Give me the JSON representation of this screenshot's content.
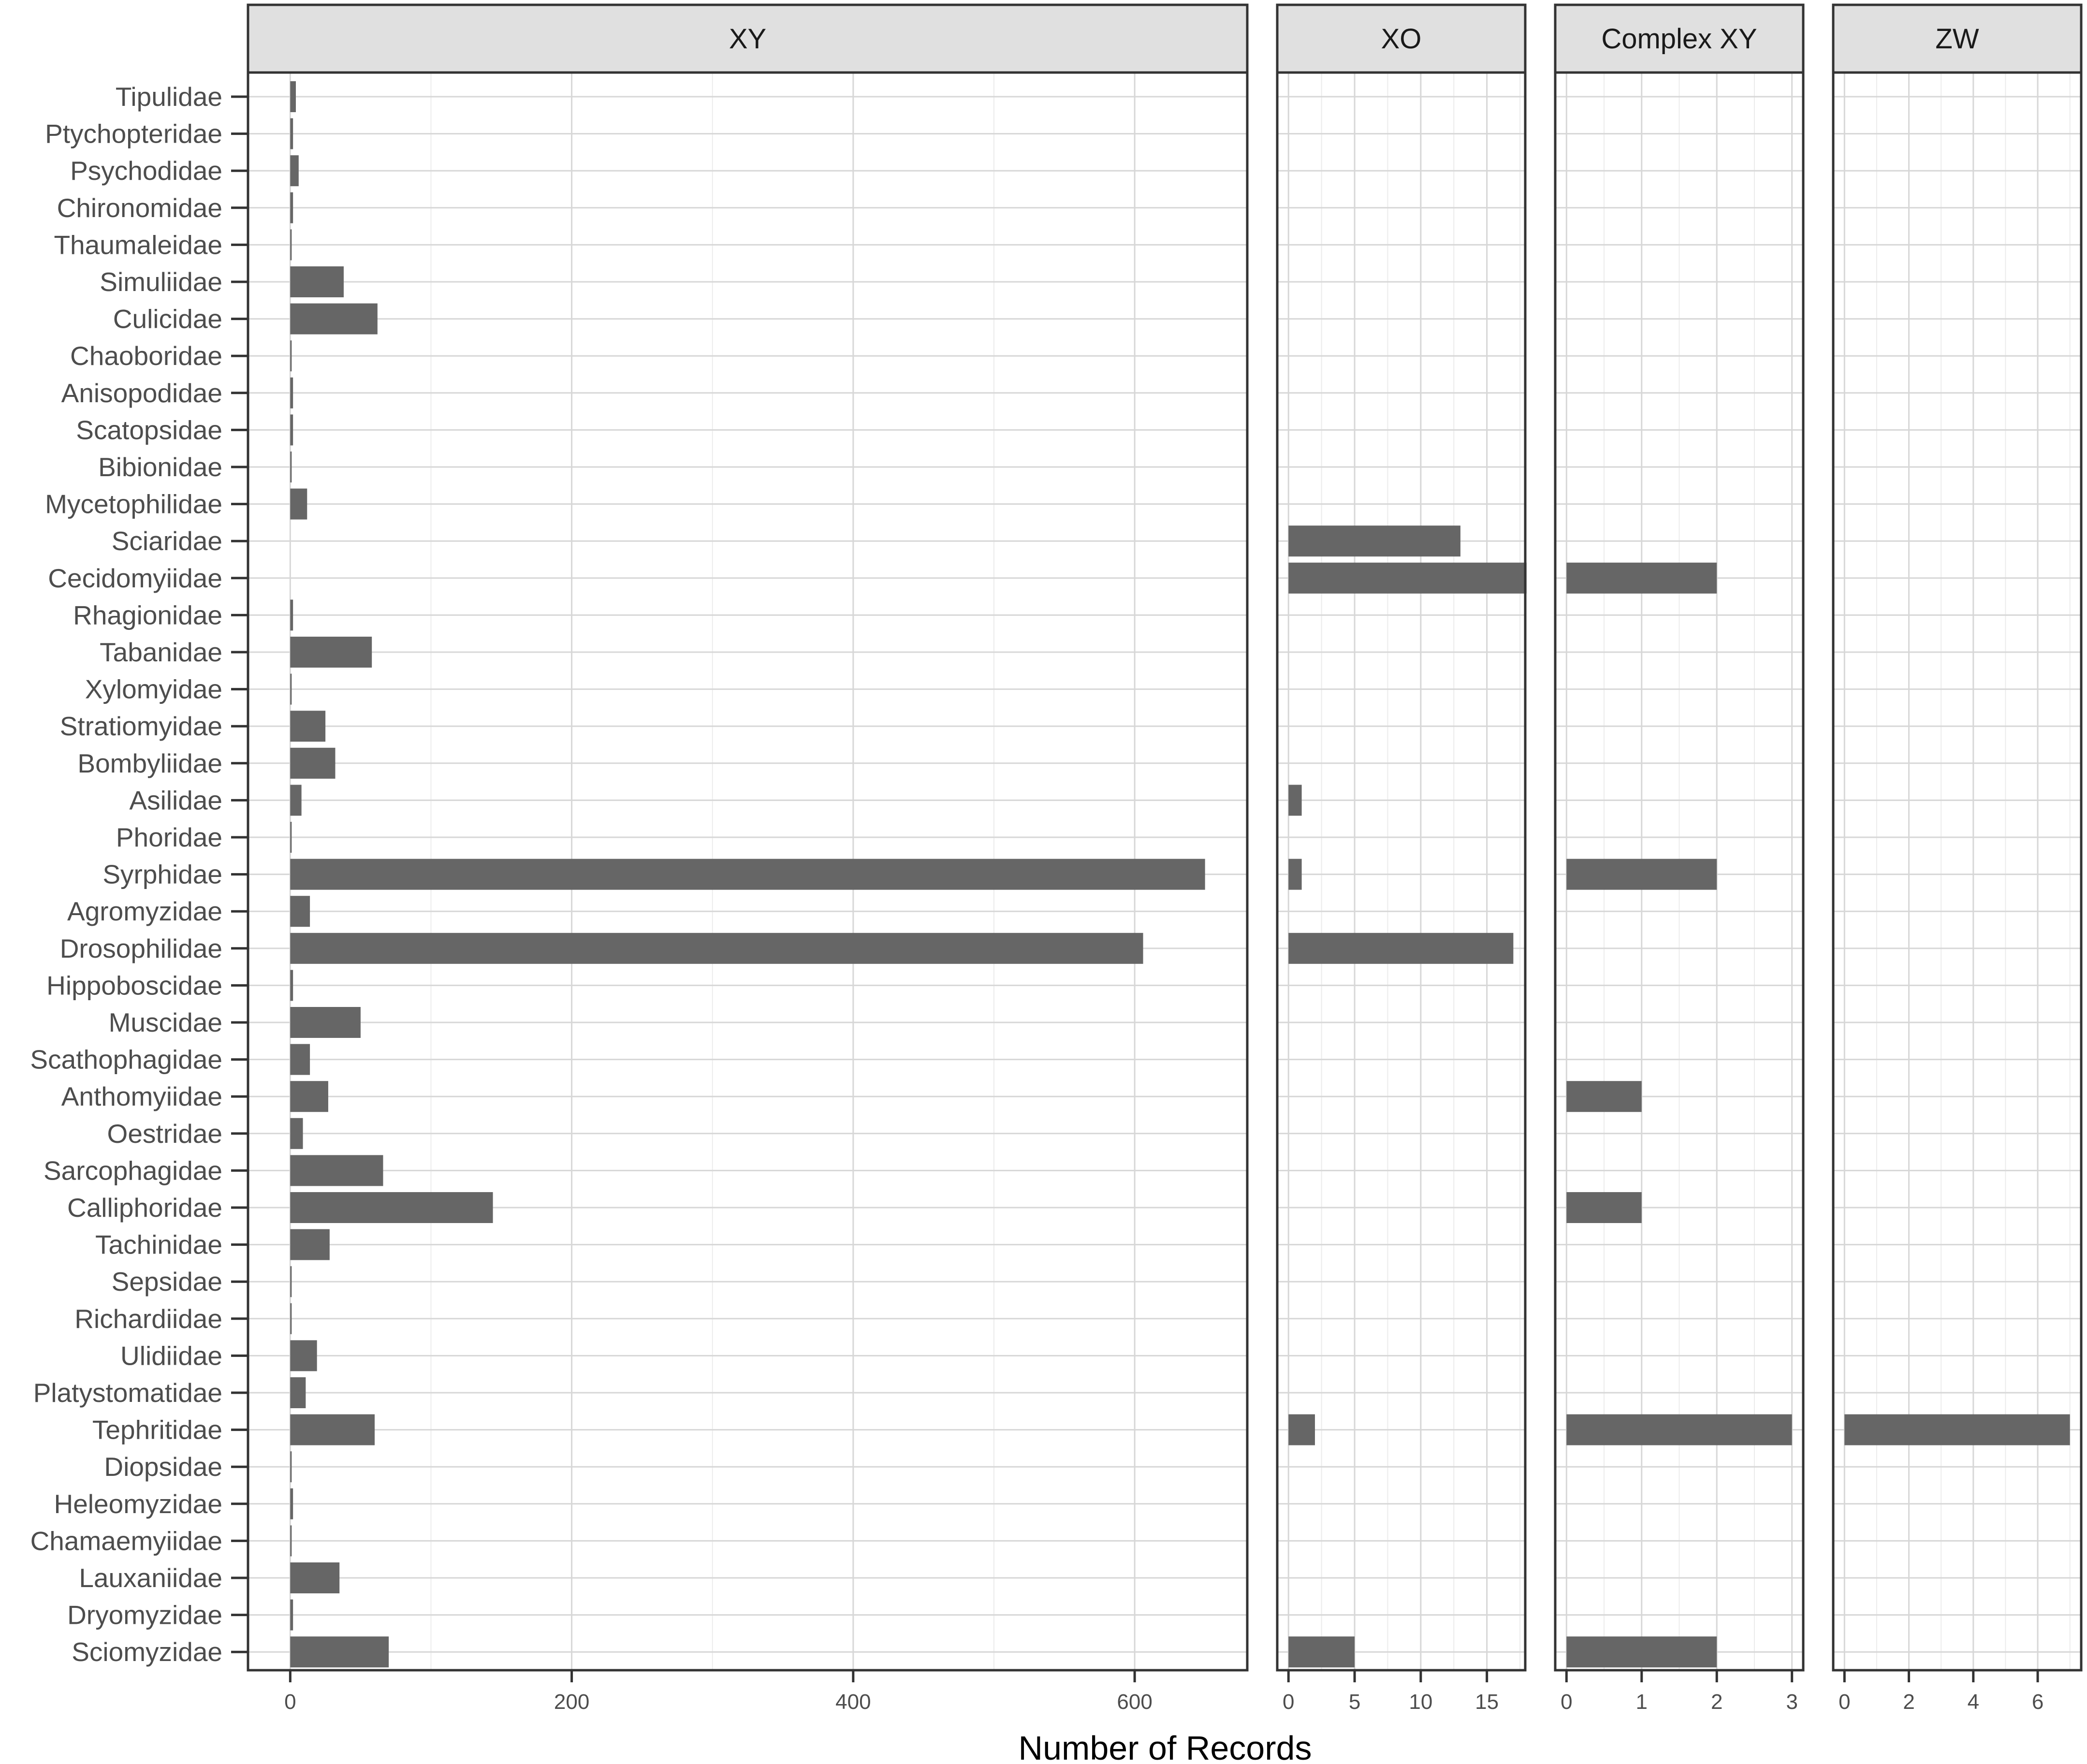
{
  "chart_data": {
    "type": "bar",
    "orientation": "horizontal",
    "facets": [
      "XY",
      "XO",
      "Complex XY",
      "ZW"
    ],
    "xlabel": "Number of Records",
    "ylabel": "",
    "grid": true,
    "categories": [
      "Tipulidae",
      "Ptychopteridae",
      "Psychodidae",
      "Chironomidae",
      "Thaumaleidae",
      "Simuliidae",
      "Culicidae",
      "Chaoboridae",
      "Anisopodidae",
      "Scatopsidae",
      "Bibionidae",
      "Mycetophilidae",
      "Sciaridae",
      "Cecidomyiidae",
      "Rhagionidae",
      "Tabanidae",
      "Xylomyidae",
      "Stratiomyidae",
      "Bombyliidae",
      "Asilidae",
      "Phoridae",
      "Syrphidae",
      "Agromyzidae",
      "Drosophilidae",
      "Hippoboscidae",
      "Muscidae",
      "Scathophagidae",
      "Anthomyiidae",
      "Oestridae",
      "Sarcophagidae",
      "Calliphoridae",
      "Tachinidae",
      "Sepsidae",
      "Richardiidae",
      "Ulidiidae",
      "Platystomatidae",
      "Tephritidae",
      "Diopsidae",
      "Heleomyzidae",
      "Chamaemyiidae",
      "Lauxaniidae",
      "Dryomyzidae",
      "Sciomyzidae"
    ],
    "series": [
      {
        "name": "XY",
        "xlim": [
          -30,
          680
        ],
        "ticks": [
          "0",
          "200",
          "400",
          "600"
        ],
        "tick_values": [
          0,
          200,
          400,
          600
        ],
        "values": [
          4,
          2,
          6,
          2,
          1,
          38,
          62,
          1,
          2,
          2,
          1,
          12,
          null,
          null,
          2,
          58,
          1,
          25,
          32,
          8,
          1,
          650,
          14,
          606,
          2,
          50,
          14,
          27,
          9,
          66,
          144,
          28,
          1,
          1,
          19,
          11,
          60,
          1,
          2,
          1,
          35,
          2,
          70
        ]
      },
      {
        "name": "XO",
        "xlim": [
          -0.85,
          17.9
        ],
        "ticks": [
          "0",
          "5",
          "10",
          "15"
        ],
        "tick_values": [
          0,
          5,
          10,
          15
        ],
        "values": [
          null,
          null,
          null,
          null,
          null,
          null,
          null,
          null,
          null,
          null,
          null,
          null,
          13,
          18,
          null,
          null,
          null,
          null,
          null,
          1,
          null,
          1,
          null,
          17,
          null,
          null,
          null,
          null,
          null,
          null,
          null,
          null,
          null,
          null,
          null,
          null,
          2,
          null,
          null,
          null,
          null,
          null,
          5
        ]
      },
      {
        "name": "Complex XY",
        "xlim": [
          -0.15,
          3.15
        ],
        "ticks": [
          "0",
          "1",
          "2",
          "3"
        ],
        "tick_values": [
          0,
          1,
          2,
          3
        ],
        "values": [
          null,
          null,
          null,
          null,
          null,
          null,
          null,
          null,
          null,
          null,
          null,
          null,
          null,
          2,
          null,
          null,
          null,
          null,
          null,
          null,
          null,
          2,
          null,
          null,
          null,
          null,
          null,
          1,
          null,
          null,
          1,
          null,
          null,
          null,
          null,
          null,
          3,
          null,
          null,
          null,
          null,
          null,
          2
        ]
      },
      {
        "name": "ZW",
        "xlim": [
          -0.35,
          7.35
        ],
        "ticks": [
          "0",
          "2",
          "4",
          "6"
        ],
        "tick_values": [
          0,
          2,
          4,
          6
        ],
        "values": [
          null,
          null,
          null,
          null,
          null,
          null,
          null,
          null,
          null,
          null,
          null,
          null,
          null,
          null,
          null,
          null,
          null,
          null,
          null,
          null,
          null,
          null,
          null,
          null,
          null,
          null,
          null,
          null,
          null,
          null,
          null,
          null,
          null,
          null,
          null,
          null,
          7,
          null,
          null,
          null,
          null,
          null,
          null
        ]
      }
    ]
  }
}
